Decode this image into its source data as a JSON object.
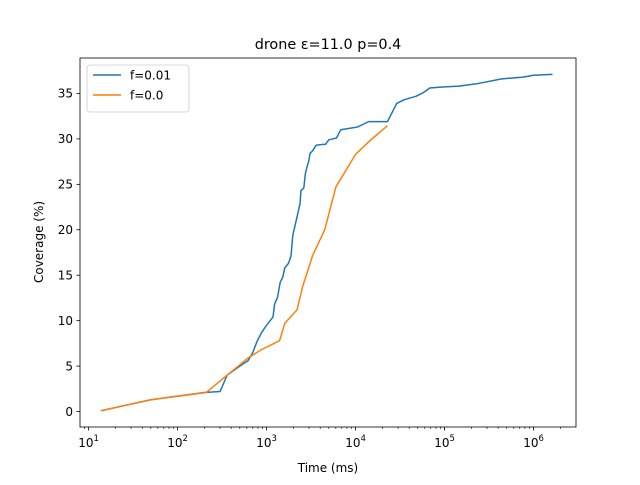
{
  "chart_data": {
    "type": "line",
    "title": "drone ε=11.0 p=0.4",
    "xlabel": "Time (ms)",
    "ylabel": "Coverage (%)",
    "xscale": "log",
    "xlim": [
      8,
      3000000
    ],
    "ylim": [
      -1.7,
      38.9
    ],
    "grid": false,
    "legend_position": "top-left",
    "x_ticks": [
      {
        "value": 10,
        "base": "10",
        "exp": "1"
      },
      {
        "value": 100,
        "base": "10",
        "exp": "2"
      },
      {
        "value": 1000,
        "base": "10",
        "exp": "3"
      },
      {
        "value": 10000,
        "base": "10",
        "exp": "4"
      },
      {
        "value": 100000,
        "base": "10",
        "exp": "5"
      },
      {
        "value": 1000000,
        "base": "10",
        "exp": "6"
      }
    ],
    "y_ticks": [
      {
        "value": 0,
        "label": "0"
      },
      {
        "value": 5,
        "label": "5"
      },
      {
        "value": 10,
        "label": "10"
      },
      {
        "value": 15,
        "label": "15"
      },
      {
        "value": 20,
        "label": "20"
      },
      {
        "value": 25,
        "label": "25"
      },
      {
        "value": 30,
        "label": "30"
      },
      {
        "value": 35,
        "label": "35"
      }
    ],
    "series": [
      {
        "name": "f=0.01",
        "color": "#1f77b4",
        "points": [
          [
            14,
            0.1
          ],
          [
            50,
            1.3
          ],
          [
            200,
            2.1
          ],
          [
            300,
            2.2
          ],
          [
            360,
            4.0
          ],
          [
            500,
            5.0
          ],
          [
            620,
            5.6
          ],
          [
            700,
            6.5
          ],
          [
            780,
            7.7
          ],
          [
            880,
            8.7
          ],
          [
            1000,
            9.5
          ],
          [
            1180,
            10.4
          ],
          [
            1230,
            11.8
          ],
          [
            1330,
            12.6
          ],
          [
            1420,
            14.2
          ],
          [
            1520,
            14.8
          ],
          [
            1600,
            15.8
          ],
          [
            1760,
            16.3
          ],
          [
            1880,
            17.1
          ],
          [
            1970,
            19.4
          ],
          [
            2150,
            21.0
          ],
          [
            2380,
            22.9
          ],
          [
            2430,
            24.3
          ],
          [
            2620,
            24.6
          ],
          [
            2730,
            26.2
          ],
          [
            2860,
            27.0
          ],
          [
            2980,
            27.6
          ],
          [
            3080,
            28.4
          ],
          [
            3300,
            28.7
          ],
          [
            3600,
            29.3
          ],
          [
            4300,
            29.4
          ],
          [
            4600,
            29.4
          ],
          [
            5000,
            29.9
          ],
          [
            6100,
            30.1
          ],
          [
            6800,
            31.0
          ],
          [
            9000,
            31.2
          ],
          [
            10500,
            31.3
          ],
          [
            14000,
            31.9
          ],
          [
            17000,
            31.9
          ],
          [
            22800,
            31.9
          ],
          [
            29000,
            33.9
          ],
          [
            35000,
            34.3
          ],
          [
            48000,
            34.7
          ],
          [
            58000,
            35.1
          ],
          [
            68000,
            35.6
          ],
          [
            90000,
            35.7
          ],
          [
            145000,
            35.8
          ],
          [
            240000,
            36.1
          ],
          [
            440000,
            36.6
          ],
          [
            760000,
            36.8
          ],
          [
            1000000,
            37.0
          ],
          [
            1600000,
            37.1
          ]
        ]
      },
      {
        "name": "f=0.0",
        "color": "#ff7f0e",
        "points": [
          [
            14,
            0.1
          ],
          [
            50,
            1.3
          ],
          [
            210,
            2.1
          ],
          [
            370,
            4.1
          ],
          [
            620,
            5.9
          ],
          [
            870,
            6.8
          ],
          [
            1400,
            7.8
          ],
          [
            1600,
            9.7
          ],
          [
            2200,
            11.2
          ],
          [
            2550,
            13.8
          ],
          [
            3300,
            17.2
          ],
          [
            4500,
            20.0
          ],
          [
            6000,
            24.7
          ],
          [
            10000,
            28.3
          ],
          [
            14500,
            29.8
          ],
          [
            22500,
            31.4
          ]
        ]
      }
    ]
  }
}
